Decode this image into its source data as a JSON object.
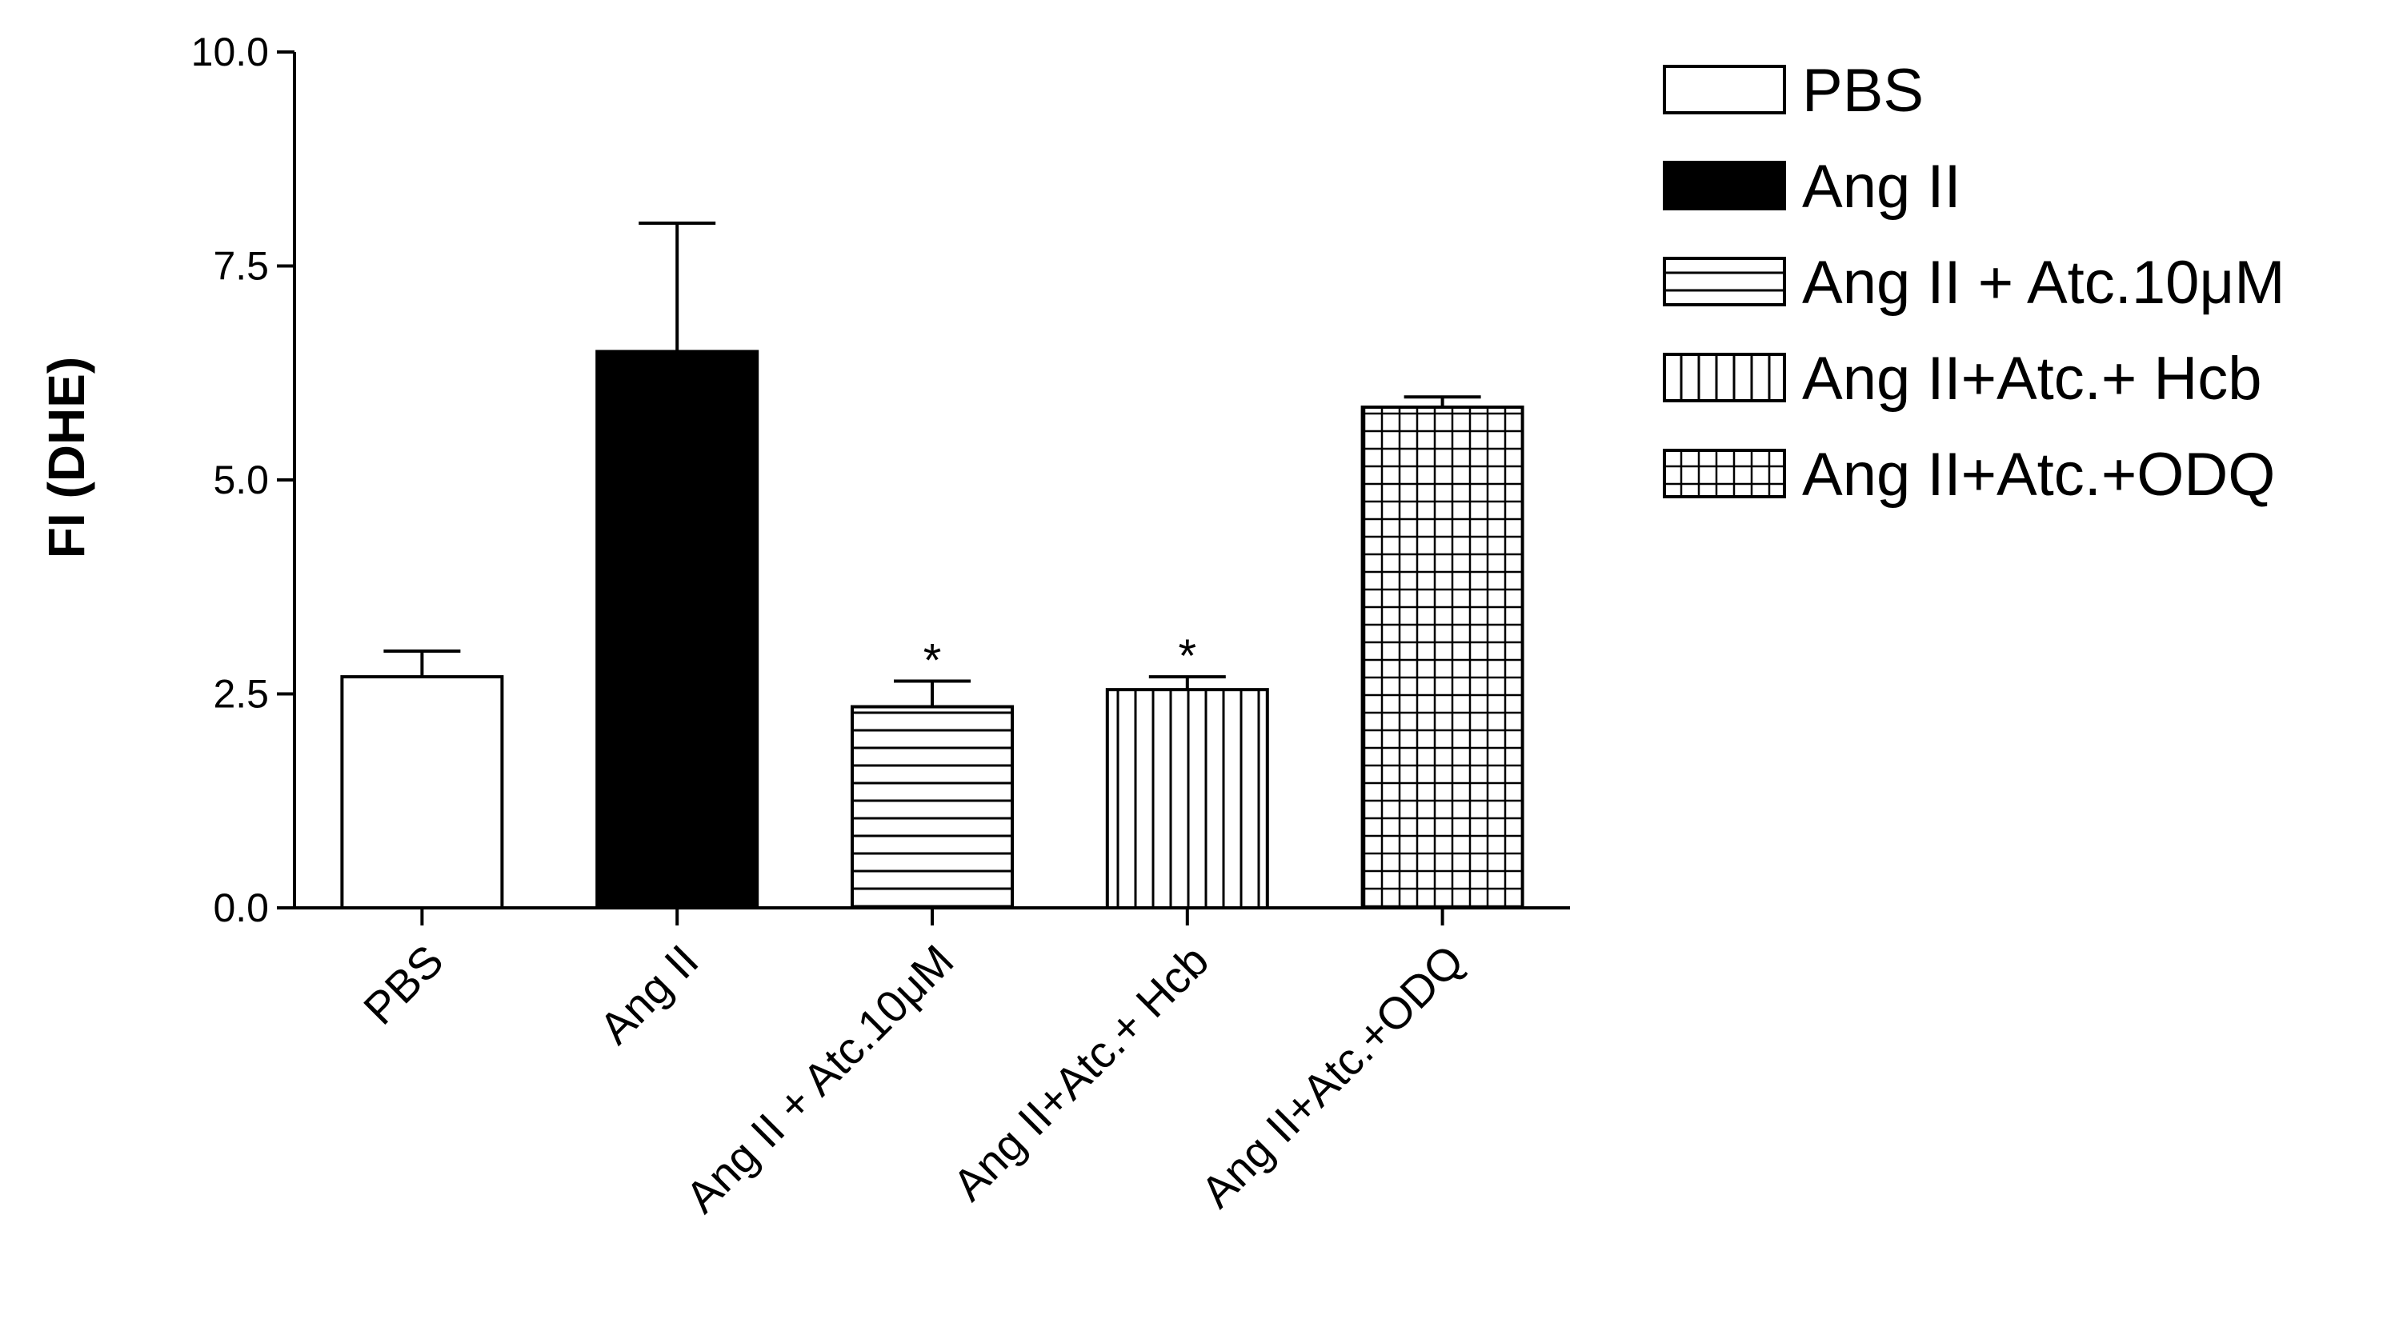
{
  "chart_data": {
    "type": "bar",
    "ylabel": "FI (DHE)",
    "xlabel": "",
    "ylim": [
      0,
      10
    ],
    "yticks": [
      "0.0",
      "2.5",
      "5.0",
      "7.5",
      "10.0"
    ],
    "categories": [
      "PBS",
      "Ang II",
      "Ang II + Atc.10μM",
      "Ang II+Atc.+ Hcb",
      "Ang II+Atc.+ODQ"
    ],
    "values": [
      2.7,
      6.5,
      2.35,
      2.55,
      5.85
    ],
    "errors": [
      0.3,
      1.5,
      0.3,
      0.15,
      0.12
    ],
    "significance": [
      "",
      "",
      "*",
      "*",
      ""
    ],
    "patterns": [
      "empty",
      "solid",
      "horizontal-lines",
      "vertical-lines",
      "grid"
    ],
    "legend": {
      "placement": "right",
      "entries": [
        "PBS",
        "Ang II",
        "Ang II + Atc.10μM",
        "Ang II+Atc.+ Hcb",
        "Ang II+Atc.+ODQ"
      ]
    },
    "grid": false,
    "bar_color": "#000000"
  }
}
